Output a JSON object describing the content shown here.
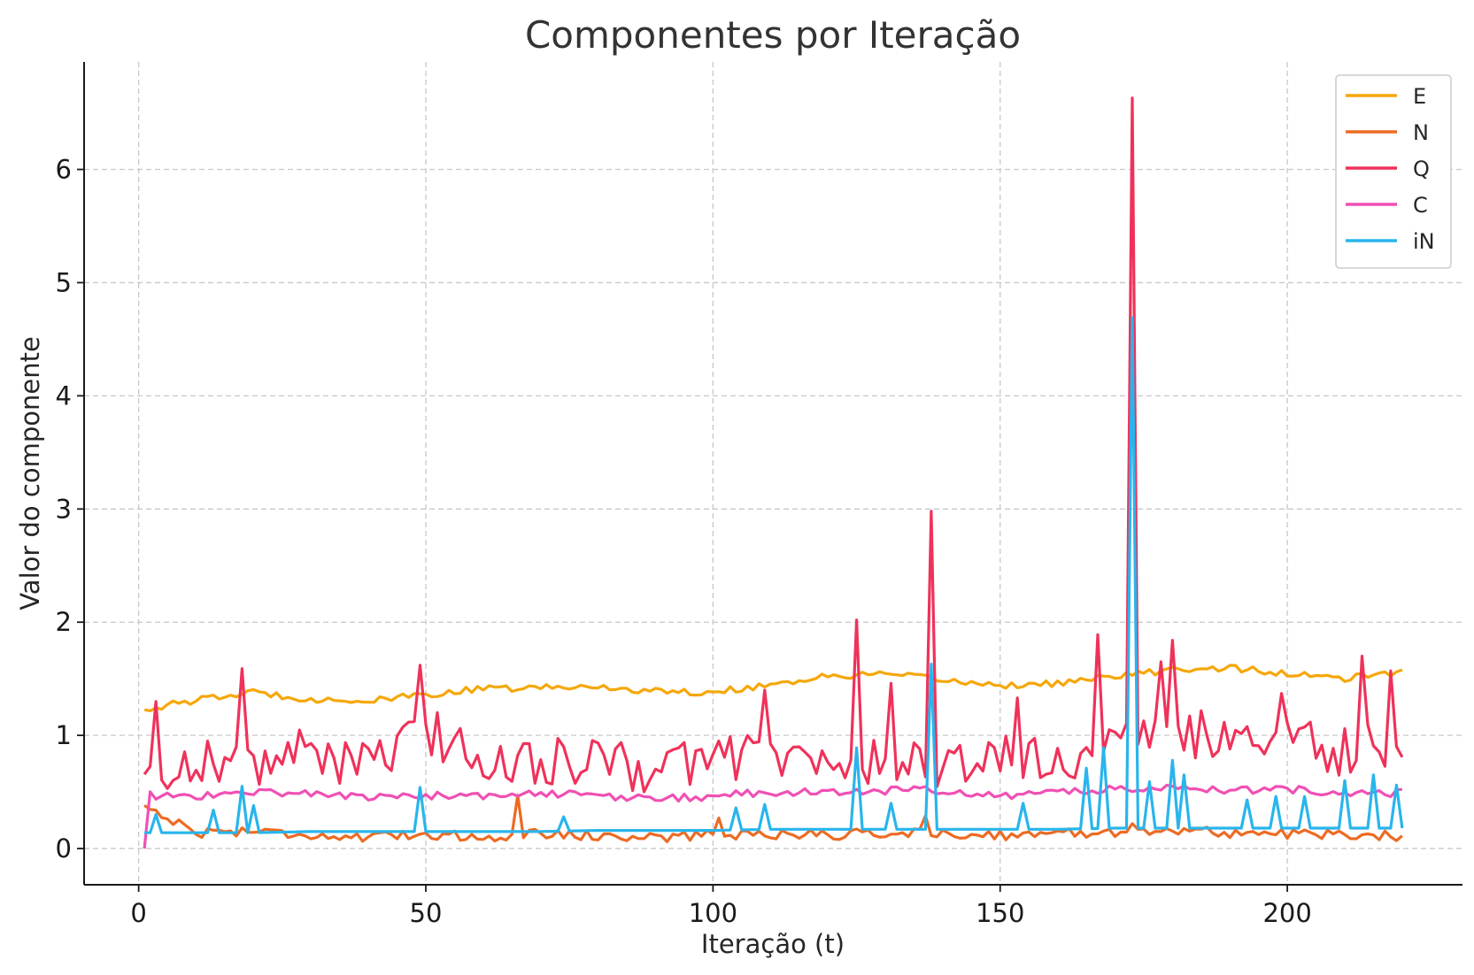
{
  "chart_data": {
    "type": "line",
    "title": "Componentes por Iteração",
    "xlabel": "Iteração (t)",
    "ylabel": "Valor do componente",
    "xlim": [
      -9.5,
      230.5
    ],
    "ylim": [
      -0.32,
      6.95
    ],
    "xticks": [
      0,
      50,
      100,
      150,
      200
    ],
    "yticks": [
      0,
      1,
      2,
      3,
      4,
      5,
      6
    ],
    "grid": true,
    "legend_position": "top-right",
    "anchor_x": [
      1,
      10,
      20,
      30,
      40,
      50,
      60,
      70,
      80,
      90,
      100,
      110,
      120,
      130,
      140,
      150,
      160,
      170,
      180,
      190,
      200,
      210,
      220
    ],
    "series": [
      {
        "name": "E",
        "color": "#f5a70a",
        "values": [
          1.23,
          1.31,
          1.38,
          1.32,
          1.3,
          1.36,
          1.41,
          1.42,
          1.43,
          1.39,
          1.38,
          1.45,
          1.52,
          1.54,
          1.49,
          1.44,
          1.46,
          1.52,
          1.58,
          1.6,
          1.54,
          1.5,
          1.56
        ],
        "spikes": []
      },
      {
        "name": "N",
        "color": "#ec6b23",
        "values": [
          0.38,
          0.14,
          0.16,
          0.12,
          0.09,
          0.13,
          0.1,
          0.14,
          0.11,
          0.1,
          0.12,
          0.13,
          0.12,
          0.14,
          0.13,
          0.12,
          0.13,
          0.15,
          0.16,
          0.14,
          0.13,
          0.12,
          0.11
        ],
        "spikes": [
          [
            66,
            0.47
          ],
          [
            101,
            0.27
          ],
          [
            137,
            0.29
          ],
          [
            173,
            0.22
          ]
        ]
      },
      {
        "name": "Q",
        "color": "#ef325a",
        "values": [
          0.62,
          0.8,
          0.72,
          0.88,
          0.7,
          1.05,
          0.76,
          0.78,
          0.75,
          0.7,
          0.8,
          0.85,
          0.72,
          0.76,
          0.72,
          0.8,
          0.8,
          0.9,
          1.0,
          1.0,
          0.95,
          0.85,
          0.92
        ],
        "spikes": [
          [
            3,
            1.3
          ],
          [
            18,
            1.59
          ],
          [
            49,
            1.62
          ],
          [
            125,
            2.02
          ],
          [
            138,
            2.98
          ],
          [
            173,
            6.63
          ],
          [
            167,
            1.89
          ],
          [
            180,
            1.84
          ],
          [
            178,
            1.65
          ],
          [
            213,
            1.7
          ],
          [
            218,
            1.57
          ],
          [
            109,
            1.4
          ],
          [
            131,
            1.46
          ],
          [
            153,
            1.33
          ],
          [
            199,
            1.37
          ]
        ]
      },
      {
        "name": "C",
        "color": "#f050b4",
        "values": [
          0.47,
          0.46,
          0.5,
          0.49,
          0.45,
          0.47,
          0.46,
          0.49,
          0.46,
          0.44,
          0.46,
          0.5,
          0.5,
          0.51,
          0.52,
          0.46,
          0.5,
          0.52,
          0.55,
          0.52,
          0.52,
          0.5,
          0.49
        ],
        "spikes": [
          [
            1,
            0.0
          ]
        ]
      },
      {
        "name": "iN",
        "color": "#29b5ec",
        "values": [
          0.14,
          0.14,
          0.14,
          0.15,
          0.15,
          0.15,
          0.15,
          0.15,
          0.16,
          0.16,
          0.16,
          0.17,
          0.17,
          0.17,
          0.17,
          0.17,
          0.17,
          0.18,
          0.18,
          0.18,
          0.18,
          0.18,
          0.18
        ],
        "spikes": [
          [
            3,
            0.3
          ],
          [
            13,
            0.34
          ],
          [
            18,
            0.55
          ],
          [
            20,
            0.38
          ],
          [
            49,
            0.54
          ],
          [
            74,
            0.28
          ],
          [
            104,
            0.36
          ],
          [
            109,
            0.39
          ],
          [
            125,
            0.89
          ],
          [
            131,
            0.4
          ],
          [
            138,
            1.63
          ],
          [
            154,
            0.4
          ],
          [
            165,
            0.71
          ],
          [
            168,
            0.89
          ],
          [
            173,
            4.69
          ],
          [
            176,
            0.59
          ],
          [
            180,
            0.78
          ],
          [
            182,
            0.65
          ],
          [
            193,
            0.43
          ],
          [
            198,
            0.46
          ],
          [
            203,
            0.46
          ],
          [
            210,
            0.6
          ],
          [
            215,
            0.65
          ],
          [
            219,
            0.56
          ]
        ]
      }
    ]
  }
}
